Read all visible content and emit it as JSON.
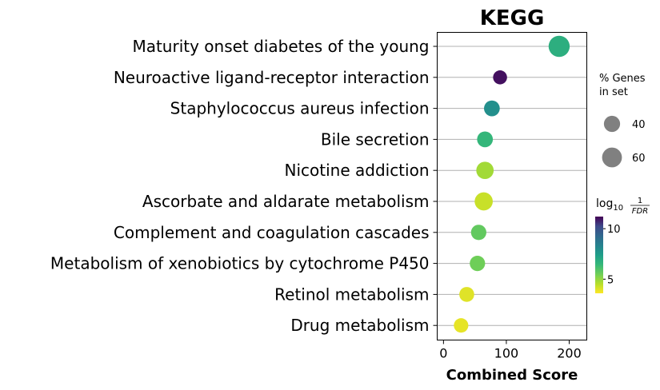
{
  "chart_data": {
    "type": "scatter",
    "title": "KEGG",
    "xlabel": "Combined Score",
    "ylabel": "",
    "xlim": [
      -10,
      228
    ],
    "xticks": [
      0,
      100,
      200
    ],
    "grid": "horizontal",
    "categories": [
      "Maturity onset diabetes of the young",
      "Neuroactive ligand-receptor interaction",
      "Staphylococcus aureus infection",
      "Bile secretion",
      "Nicotine addiction",
      "Ascorbate and aldarate metabolism",
      "Complement and coagulation cascades",
      "Metabolism of xenobiotics by cytochrome P450",
      "Retinol metabolism",
      "Drug metabolism"
    ],
    "x": [
      184,
      90,
      77,
      66,
      66,
      64,
      56,
      54,
      37,
      28
    ],
    "gene_percent": [
      68,
      30,
      38,
      38,
      46,
      50,
      36,
      36,
      34,
      32
    ],
    "log10_inv_fdr": [
      6.8,
      11.0,
      7.9,
      6.5,
      4.8,
      4.3,
      5.7,
      5.5,
      4.0,
      3.9
    ],
    "size_legend": {
      "title_line1": "% Genes",
      "title_line2": "in set",
      "entries": [
        {
          "label": "40",
          "value": 40
        },
        {
          "label": "60",
          "value": 60
        }
      ]
    },
    "colorbar": {
      "title_base": "log",
      "title_sub": "10",
      "title_num": "1",
      "title_den": "FDR",
      "colormap": "viridis_r",
      "range": [
        3.6,
        11.2
      ],
      "ticks": [
        {
          "label": "10",
          "value": 10
        },
        {
          "label": "5",
          "value": 5
        }
      ]
    }
  }
}
